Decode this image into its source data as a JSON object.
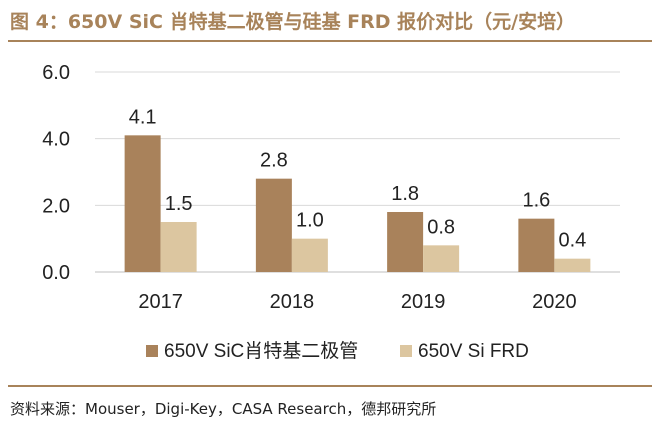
{
  "header": {
    "title": "图 4：650V SiC 肖特基二极管与硅基 FRD 报价对比（元/安培）"
  },
  "footer": {
    "source": "资料来源：Mouser，Digi-Key，CASA Research，德邦研究所"
  },
  "colors": {
    "accent": "#a8835a",
    "series1": "#a9825b",
    "series2": "#dcc6a0",
    "grid": "#d9d9d9",
    "text": "#222222"
  },
  "chart_data": {
    "type": "bar",
    "title": "650V SiC 肖特基二极管与硅基 FRD 报价对比（元/安培）",
    "xlabel": "",
    "ylabel": "",
    "ylim": [
      0,
      6
    ],
    "yticks": [
      0,
      2,
      4,
      6
    ],
    "ytick_labels": [
      "0.0",
      "2.0",
      "4.0",
      "6.0"
    ],
    "grid": true,
    "legend_position": "bottom",
    "categories": [
      "2017",
      "2018",
      "2019",
      "2020"
    ],
    "series": [
      {
        "name": "650V SiC肖特基二极管",
        "values": [
          4.1,
          2.8,
          1.8,
          1.6
        ],
        "labels": [
          "4.1",
          "2.8",
          "1.8",
          "1.6"
        ]
      },
      {
        "name": "650V Si FRD",
        "values": [
          1.5,
          1.0,
          0.8,
          0.4
        ],
        "labels": [
          "1.5",
          "1.0",
          "0.8",
          "0.4"
        ]
      }
    ]
  }
}
